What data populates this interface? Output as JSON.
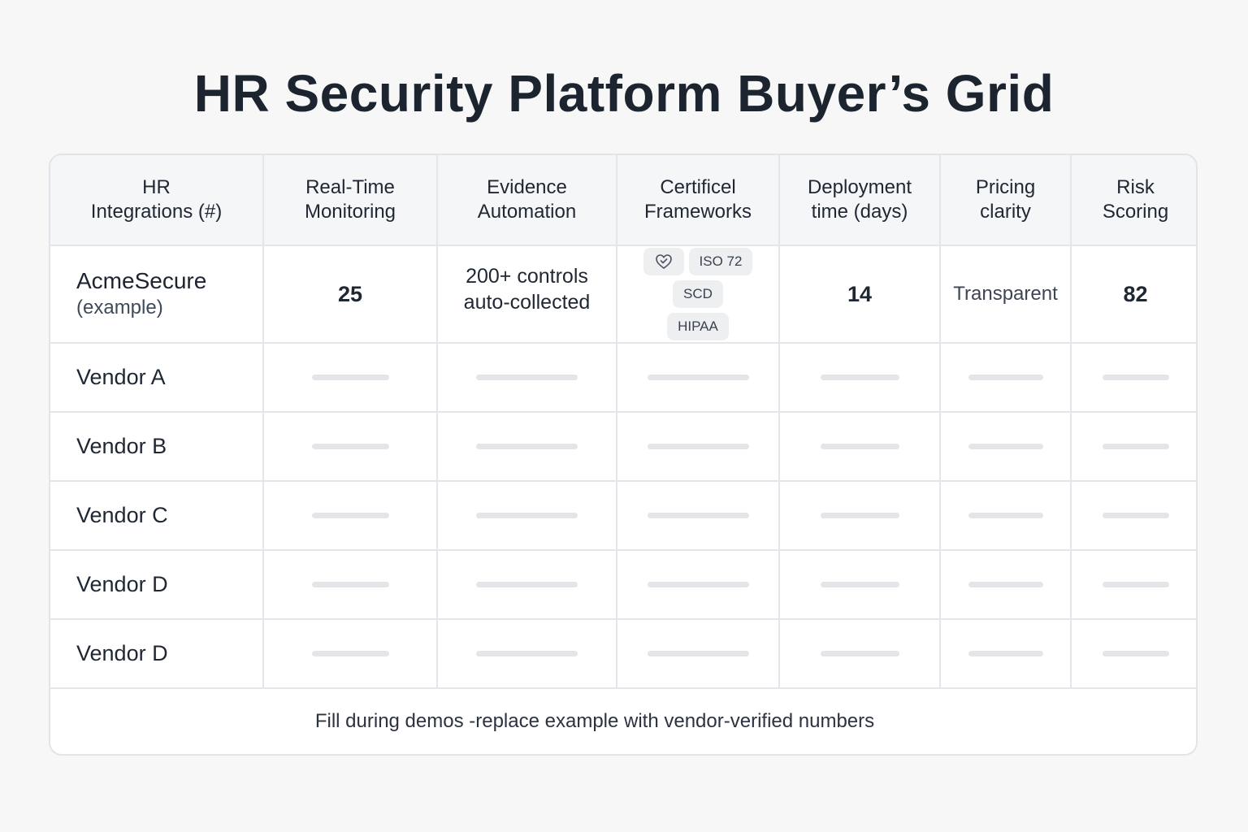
{
  "title": "HR Security Platform Buyer’s Grid",
  "columns": [
    {
      "label": "HR\nIntegrations (#)"
    },
    {
      "label": "Real-Time Monitoring"
    },
    {
      "label": "Evidence Automation"
    },
    {
      "label": "Certificel Frameworks"
    },
    {
      "label": "Deployment time (days)"
    },
    {
      "label": "Pricing clarity"
    },
    {
      "label": "Risk Scoring"
    }
  ],
  "example_row": {
    "name": "AcmeSecure",
    "sub": "(example)",
    "real_time_monitoring": "25",
    "evidence_automation": "200+ controls auto-collected",
    "frameworks": {
      "icon": "heart-shield-icon",
      "badges": [
        "ISO 72",
        "SCD",
        "HIPAA"
      ]
    },
    "deployment_time": "14",
    "pricing_clarity": "Transparent",
    "risk_scoring": "82"
  },
  "vendor_rows": [
    {
      "name": "Vendor A"
    },
    {
      "name": "Vendor B"
    },
    {
      "name": "Vendor C"
    },
    {
      "name": "Vendor D"
    },
    {
      "name": "Vendor D"
    }
  ],
  "footer": "Fill during demos -replace example with vendor-verified numbers",
  "colors": {
    "background": "#f7f7f7",
    "card": "#ffffff",
    "header_bg": "#f5f6f8",
    "border": "#e3e6ea",
    "placeholder": "#e3e5e8",
    "text": "#1f2733"
  }
}
